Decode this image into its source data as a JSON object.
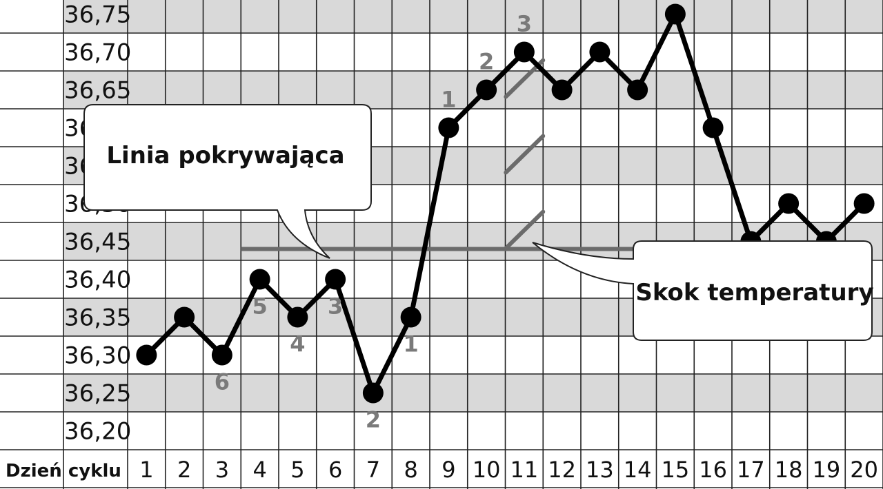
{
  "chart_data": {
    "type": "line",
    "xlabel": "Dzień cyklu",
    "categories": [
      "1",
      "2",
      "3",
      "4",
      "5",
      "6",
      "7",
      "8",
      "9",
      "10",
      "11",
      "12",
      "13",
      "14",
      "15",
      "16",
      "17",
      "18",
      "19",
      "20"
    ],
    "y_ticks": [
      "36,20",
      "36,25",
      "36,30",
      "36,35",
      "36,40",
      "36,45",
      "36,50",
      "36,55",
      "36,60",
      "36,65",
      "36,70",
      "36,75"
    ],
    "ylim": [
      36.2,
      36.75
    ],
    "grid": true,
    "series": [
      {
        "values": [
          36.3,
          36.35,
          36.3,
          36.4,
          36.35,
          36.4,
          36.25,
          36.35,
          36.6,
          36.65,
          36.7,
          36.65,
          36.7,
          36.65,
          36.75,
          36.6,
          36.45,
          36.5,
          36.45,
          36.5
        ]
      }
    ],
    "cover_line": {
      "value": 36.44,
      "from_day": 3.5,
      "to_day": 15.5
    },
    "temperature_rise_marks": {
      "day": 11.5,
      "levels": [
        36.44,
        36.54,
        36.64
      ]
    },
    "count_labels": [
      {
        "day": 3,
        "text": "6",
        "pos": "below"
      },
      {
        "day": 4,
        "text": "5",
        "pos": "below"
      },
      {
        "day": 5,
        "text": "4",
        "pos": "below"
      },
      {
        "day": 6,
        "text": "3",
        "pos": "below"
      },
      {
        "day": 7,
        "text": "2",
        "pos": "below"
      },
      {
        "day": 8,
        "text": "1",
        "pos": "below"
      },
      {
        "day": 9,
        "text": "1",
        "pos": "above"
      },
      {
        "day": 10,
        "text": "2",
        "pos": "above"
      },
      {
        "day": 11,
        "text": "3",
        "pos": "above"
      }
    ],
    "annotations": [
      "Linia pokrywająca",
      "Skok temperatury"
    ]
  }
}
